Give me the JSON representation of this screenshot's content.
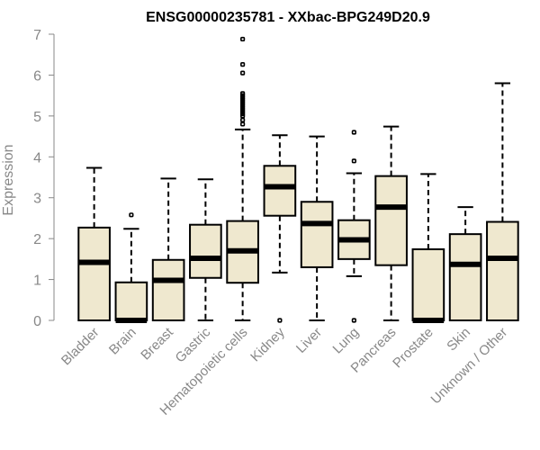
{
  "chart_data": {
    "type": "boxplot",
    "title": "ENSG00000235781 - XXbac-BPG249D20.9",
    "xlabel": "",
    "ylabel": "Expression",
    "ylim": [
      0,
      7
    ],
    "yticks": [
      "0",
      "1",
      "2",
      "3",
      "4",
      "5",
      "6",
      "7"
    ],
    "box_color": "#efe8cf",
    "categories": [
      "Bladder",
      "Brain",
      "Breast",
      "Gastric",
      "Hematopoietic cells",
      "Kidney",
      "Liver",
      "Lung",
      "Pancreas",
      "Prostate",
      "Skin",
      "Unknown / Other"
    ],
    "series": [
      {
        "name": "Bladder",
        "whisker_low": 0,
        "q1": 0,
        "median": 1.42,
        "q3": 2.27,
        "whisker_high": 3.73,
        "outliers": []
      },
      {
        "name": "Brain",
        "whisker_low": 0,
        "q1": 0,
        "median": 0,
        "q3": 0.93,
        "whisker_high": 2.24,
        "outliers": [
          2.58
        ]
      },
      {
        "name": "Breast",
        "whisker_low": 0,
        "q1": 0,
        "median": 0.98,
        "q3": 1.48,
        "whisker_high": 3.47,
        "outliers": []
      },
      {
        "name": "Gastric",
        "whisker_low": 0,
        "q1": 1.04,
        "median": 1.52,
        "q3": 2.34,
        "whisker_high": 3.45,
        "outliers": []
      },
      {
        "name": "Hematopoietic cells",
        "whisker_low": 0,
        "q1": 0.92,
        "median": 1.7,
        "q3": 2.43,
        "whisker_high": 4.67,
        "outliers": [
          4.8,
          4.9,
          5.0,
          5.05,
          5.1,
          5.15,
          5.2,
          5.25,
          5.3,
          5.35,
          5.4,
          5.45,
          5.5,
          5.55,
          6.05,
          6.26,
          6.88
        ]
      },
      {
        "name": "Kidney",
        "whisker_low": 1.17,
        "q1": 2.56,
        "median": 3.27,
        "q3": 3.78,
        "whisker_high": 4.53,
        "outliers": [
          0
        ]
      },
      {
        "name": "Liver",
        "whisker_low": 0,
        "q1": 1.3,
        "median": 2.37,
        "q3": 2.9,
        "whisker_high": 4.5,
        "outliers": []
      },
      {
        "name": "Lung",
        "whisker_low": 1.08,
        "q1": 1.5,
        "median": 1.97,
        "q3": 2.45,
        "whisker_high": 3.6,
        "outliers": [
          0,
          3.9,
          4.6
        ]
      },
      {
        "name": "Pancreas",
        "whisker_low": 0,
        "q1": 1.35,
        "median": 2.77,
        "q3": 3.53,
        "whisker_high": 4.74,
        "outliers": []
      },
      {
        "name": "Prostate",
        "whisker_low": 0,
        "q1": 0,
        "median": 0,
        "q3": 1.74,
        "whisker_high": 3.58,
        "outliers": []
      },
      {
        "name": "Skin",
        "whisker_low": 0,
        "q1": 0,
        "median": 1.37,
        "q3": 2.11,
        "whisker_high": 2.77,
        "outliers": []
      },
      {
        "name": "Unknown / Other",
        "whisker_low": 0,
        "q1": 0,
        "median": 1.52,
        "q3": 2.41,
        "whisker_high": 5.8,
        "outliers": []
      }
    ]
  }
}
